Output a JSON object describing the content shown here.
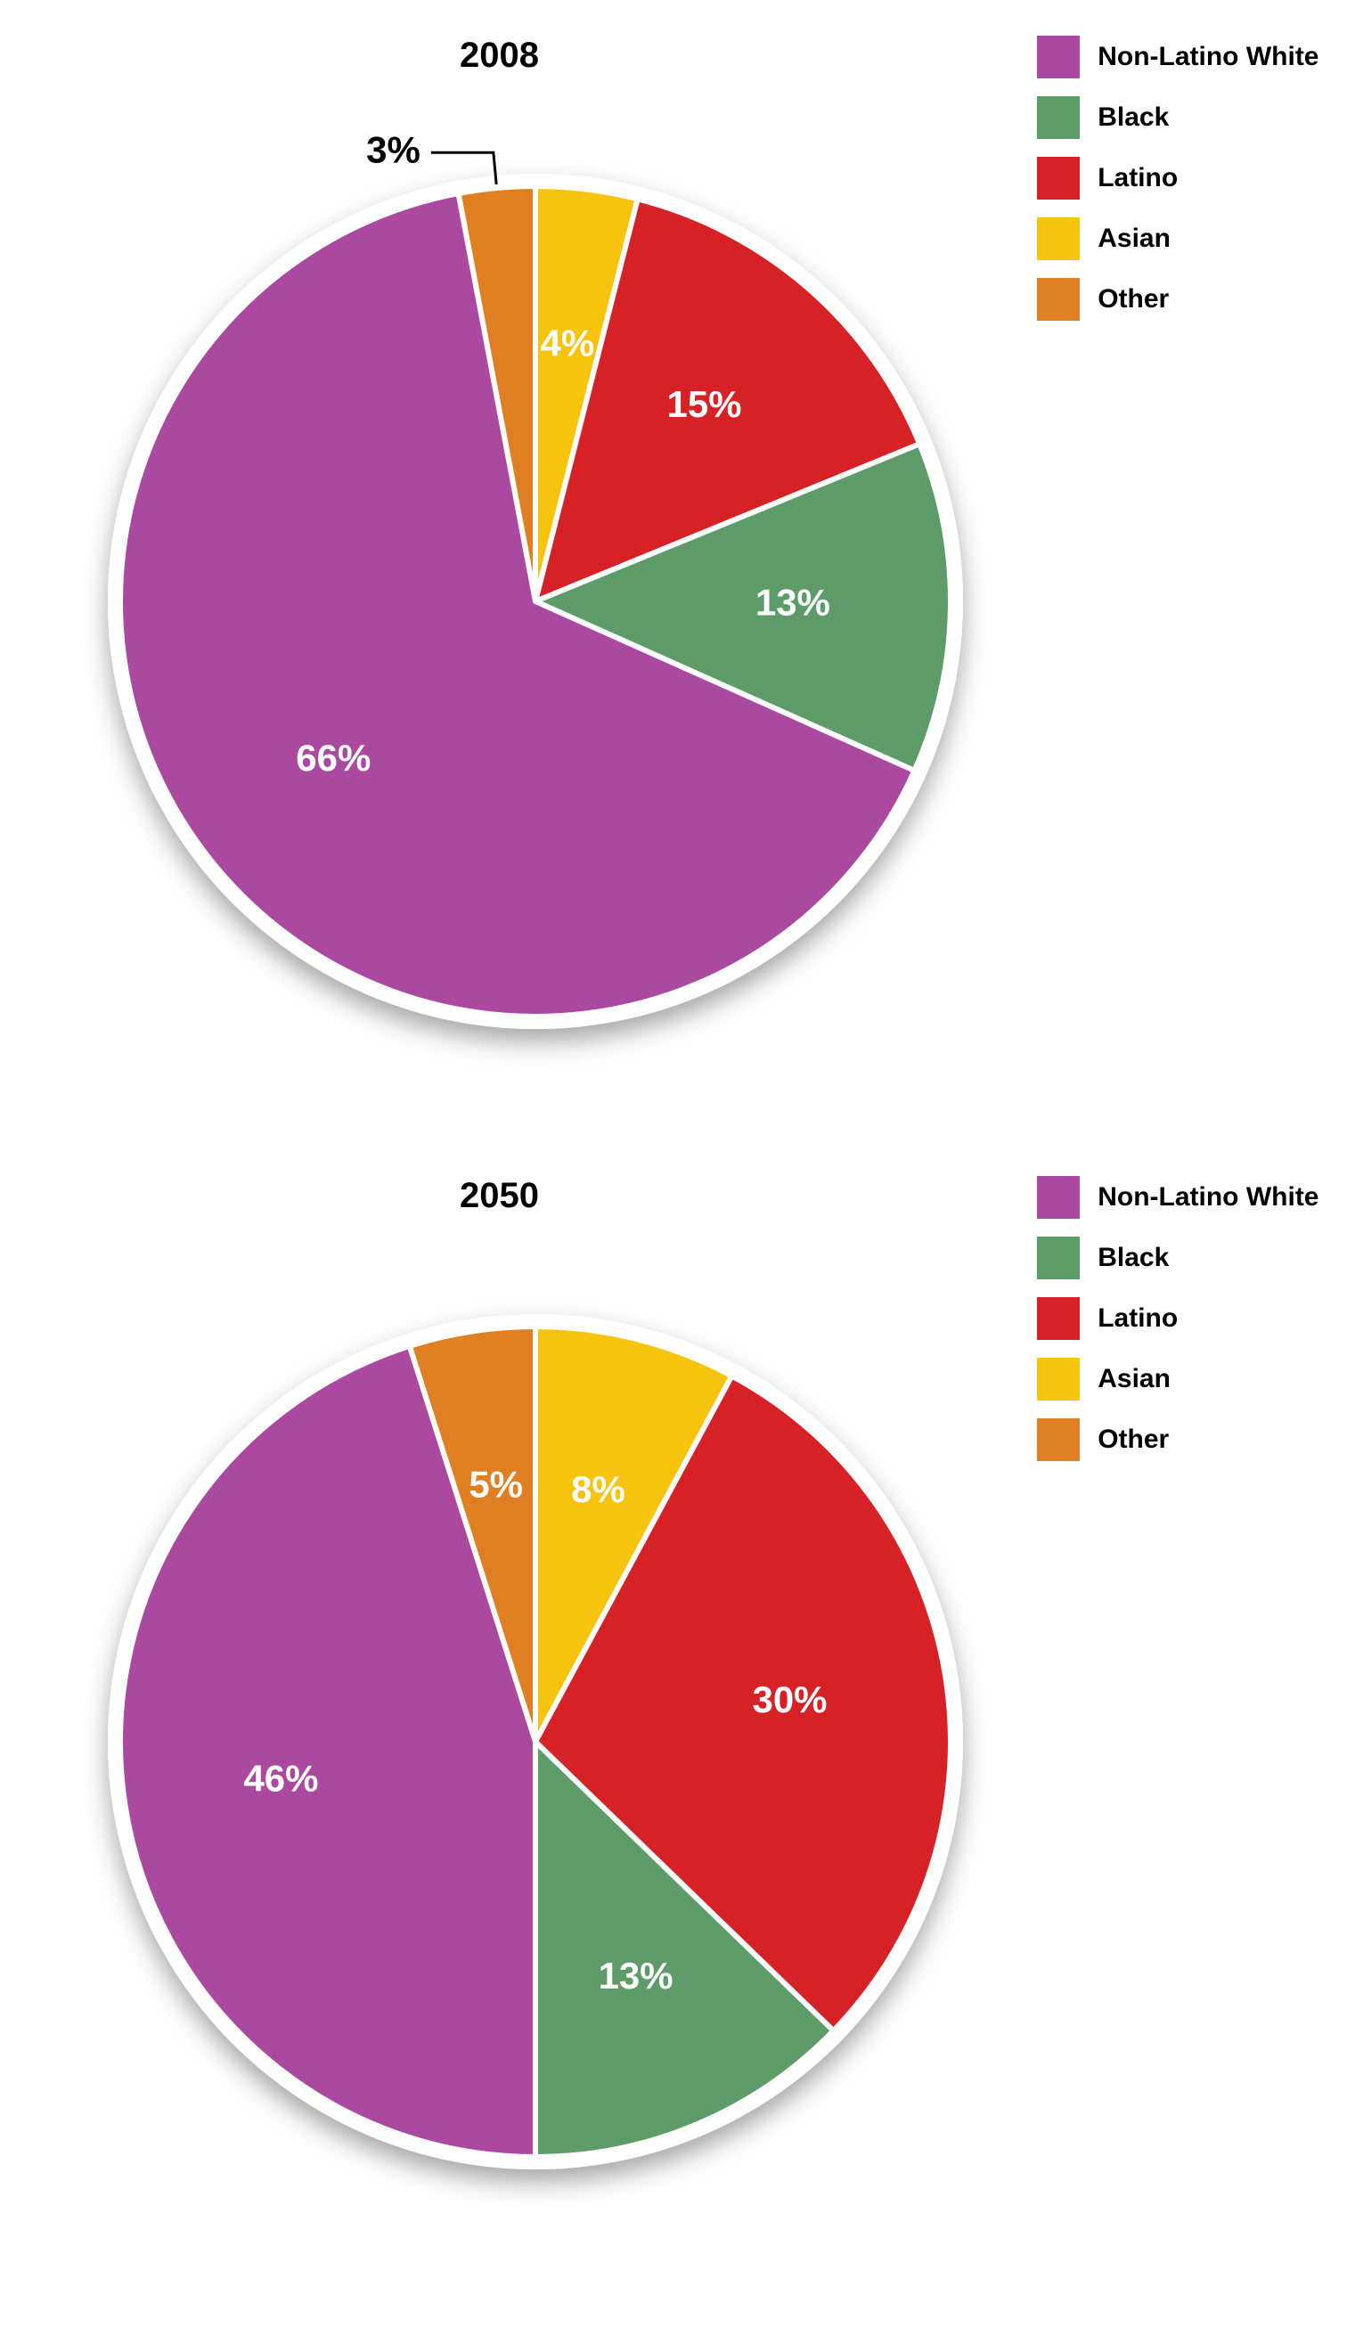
{
  "charts": [
    {
      "title": "2008",
      "title_fontsize": 40,
      "pie_diameter": 960,
      "outer_ring_color": "#ffffff",
      "outer_ring_width": 14,
      "slice_gap_color": "#ffffff",
      "slice_gap_width": 6,
      "label_fontsize": 42,
      "label_color_inside": "#ffffff",
      "label_color_outside": "#000000",
      "leader_color": "#000000",
      "shadow_color": "rgba(0,0,0,0.35)",
      "legend_fontsize": 30,
      "slices": [
        {
          "key": "other",
          "value": 3,
          "color": "#df7f24",
          "label": "3%",
          "label_placement": "outside"
        },
        {
          "key": "asian",
          "value": 4,
          "color": "#f6c40e",
          "label": "4%",
          "label_placement": "inside"
        },
        {
          "key": "latino",
          "value": 15,
          "color": "#d62027",
          "label": "15%",
          "label_placement": "inside"
        },
        {
          "key": "black",
          "value": 13,
          "color": "#5d9b67",
          "label": "13%",
          "label_placement": "inside"
        },
        {
          "key": "white",
          "value": 66,
          "color": "#ab4aa0",
          "label": "66%",
          "label_placement": "inside"
        }
      ],
      "legend": [
        {
          "label": "Non-Latino White",
          "color": "#ab4aa0"
        },
        {
          "label": "Black",
          "color": "#5d9b67"
        },
        {
          "label": "Latino",
          "color": "#d62027"
        },
        {
          "label": "Asian",
          "color": "#f6c40e"
        },
        {
          "label": "Other",
          "color": "#df7f24"
        }
      ]
    },
    {
      "title": "2050",
      "title_fontsize": 40,
      "pie_diameter": 960,
      "outer_ring_color": "#ffffff",
      "outer_ring_width": 14,
      "slice_gap_color": "#ffffff",
      "slice_gap_width": 6,
      "label_fontsize": 42,
      "label_color_inside": "#ffffff",
      "label_color_outside": "#000000",
      "leader_color": "#000000",
      "shadow_color": "rgba(0,0,0,0.35)",
      "legend_fontsize": 30,
      "slices": [
        {
          "key": "other",
          "value": 5,
          "color": "#df7f24",
          "label": "5%",
          "label_placement": "inside"
        },
        {
          "key": "asian",
          "value": 8,
          "color": "#f6c40e",
          "label": "8%",
          "label_placement": "inside"
        },
        {
          "key": "latino",
          "value": 30,
          "color": "#d62027",
          "label": "30%",
          "label_placement": "inside"
        },
        {
          "key": "black",
          "value": 13,
          "color": "#5d9b67",
          "label": "13%",
          "label_placement": "inside"
        },
        {
          "key": "white",
          "value": 46,
          "color": "#ab4aa0",
          "label": "46%",
          "label_placement": "inside"
        }
      ],
      "legend": [
        {
          "label": "Non-Latino White",
          "color": "#ab4aa0"
        },
        {
          "label": "Black",
          "color": "#5d9b67"
        },
        {
          "label": "Latino",
          "color": "#d62027"
        },
        {
          "label": "Asian",
          "color": "#f6c40e"
        },
        {
          "label": "Other",
          "color": "#df7f24"
        }
      ]
    }
  ]
}
